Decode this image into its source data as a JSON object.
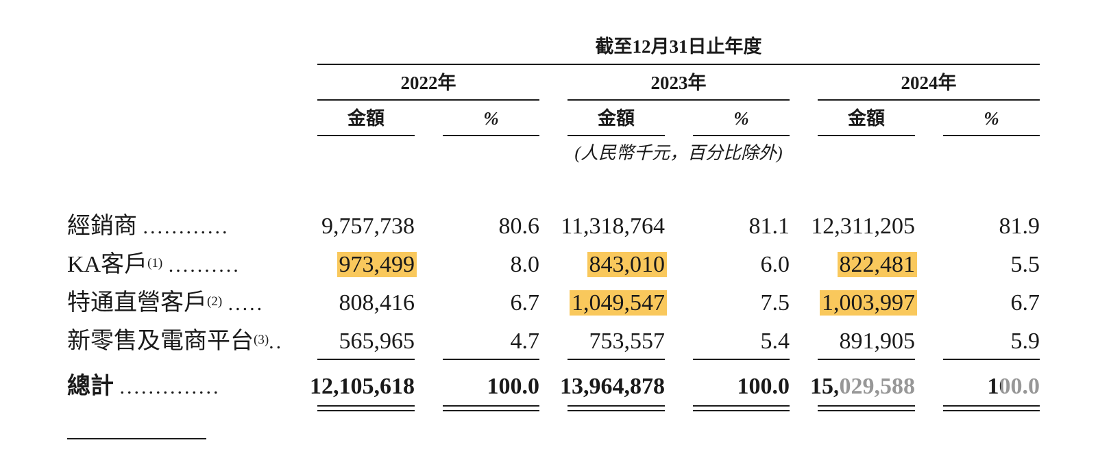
{
  "header": {
    "period_title": "截至12月31日止年度",
    "years": [
      "2022年",
      "2023年",
      "2024年"
    ],
    "amount_label": "金額",
    "percent_label": "%",
    "unit_note": "(人民幣千元，百分比除外)"
  },
  "rows": [
    {
      "label": "經銷商",
      "note": "",
      "dots": "............",
      "values": [
        "9,757,738",
        "80.6",
        "11,318,764",
        "81.1",
        "12,311,205",
        "81.9"
      ]
    },
    {
      "label": "KA客戶",
      "note": "(1)",
      "dots": "..........",
      "values": [
        "973,499",
        "8.0",
        "843,010",
        "6.0",
        "822,481",
        "5.5"
      ]
    },
    {
      "label": "特通直營客戶",
      "note": "(2)",
      "dots": ".....",
      "values": [
        "808,416",
        "6.7",
        "1,049,547",
        "7.5",
        "1,003,997",
        "6.7"
      ]
    },
    {
      "label": "新零售及電商平台",
      "note": "(3)",
      "dots": "..",
      "values": [
        "565,965",
        "4.7",
        "753,557",
        "5.4",
        "891,905",
        "5.9"
      ]
    }
  ],
  "total": {
    "label": "總計",
    "dots": "..............",
    "values": [
      "12,105,618",
      "100.0",
      "13,964,878",
      "100.0",
      "15,029,588",
      "100.0"
    ]
  },
  "highlight_color": "#f9c85c"
}
